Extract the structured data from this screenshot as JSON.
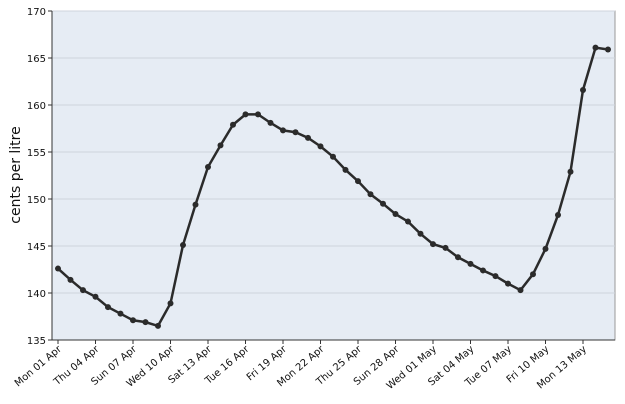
{
  "chart_data": {
    "type": "line",
    "y_label": "cents per litre",
    "categories": [
      "Mon 01 Apr",
      null,
      null,
      "Thu 04 Apr",
      null,
      null,
      "Sun 07 Apr",
      null,
      null,
      "Wed 10 Apr",
      null,
      null,
      "Sat 13 Apr",
      null,
      null,
      "Tue 16 Apr",
      null,
      null,
      "Fri 19 Apr",
      null,
      null,
      "Mon 22 Apr",
      null,
      null,
      "Thu 25 Apr",
      null,
      null,
      "Sun 28 Apr",
      null,
      null,
      "Wed 01 May",
      null,
      null,
      "Sat 04 May",
      null,
      null,
      "Tue 07 May",
      null,
      null,
      "Fri 10 May",
      null,
      null,
      "Mon 13 May",
      null,
      null
    ],
    "series": [
      {
        "color": "#2b2b2b",
        "values": [
          142.6,
          141.4,
          140.3,
          139.6,
          138.5,
          137.8,
          137.1,
          136.9,
          136.5,
          138.9,
          145.1,
          149.4,
          153.4,
          155.7,
          157.9,
          159.0,
          159.0,
          158.1,
          157.3,
          157.1,
          156.5,
          155.6,
          154.5,
          153.1,
          151.9,
          150.5,
          149.5,
          148.4,
          147.6,
          146.3,
          145.2,
          144.8,
          143.8,
          143.1,
          142.4,
          141.8,
          141.0,
          140.3,
          142.0,
          144.7,
          148.3,
          152.9,
          161.6,
          166.1,
          165.9
        ]
      }
    ],
    "ylim": [
      135,
      170
    ],
    "yticks": [
      135,
      140,
      145,
      150,
      155,
      160,
      165,
      170
    ],
    "grid": true,
    "background": "#e6ecf4"
  }
}
